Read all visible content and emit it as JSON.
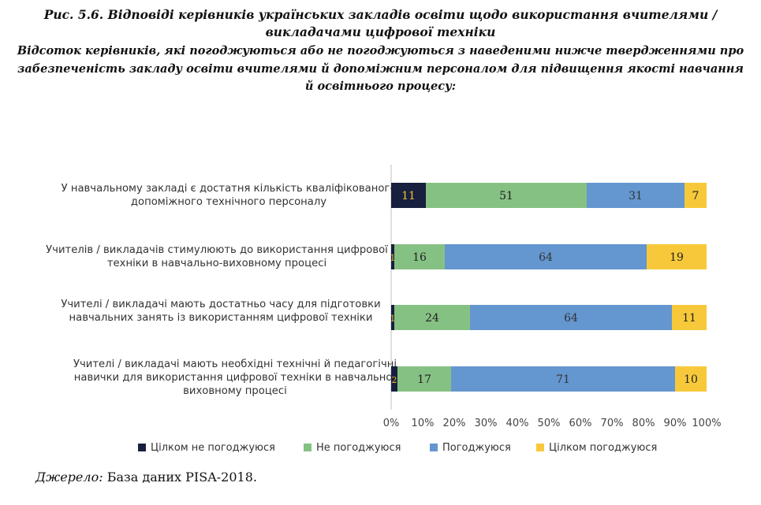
{
  "figure": {
    "title": "Рис. 5.6. Відповіді керівників українських закладів освіти щодо використання вчителями / викладачами цифрової техніки",
    "subtitle": "Відсоток керівників, які погоджуються або не погоджуються з наведеними нижче твердженнями про забезпеченість закладу освіти вчителями й допоміжним персоналом для підвищення якості навчання й освітнього процесу:",
    "source_label": "Джерело:",
    "source_text": "База даних PISA-2018."
  },
  "chart_data": {
    "type": "bar",
    "orientation": "horizontal",
    "stacked": "percent",
    "categories": [
      "У навчальному закладі є достатня кількість кваліфікованого допоміжного технічного персоналу",
      "Учителів / викладачів стимулюють до використання цифрової техніки в навчально-виховному процесі",
      "Учителі / викладачі мають достатньо часу для підготовки навчальних занять із використанням цифрової техніки",
      "Учителі / викладачі мають необхідні технічні й педагогічні навички для використання цифрової техніки в навчально-виховному процесі"
    ],
    "series": [
      {
        "name": "Цілком не погоджуюся",
        "color": "#17203f",
        "label_color": "#f2c12e",
        "values": [
          11,
          1,
          1,
          2
        ]
      },
      {
        "name": "Не погоджуюся",
        "color": "#86c184",
        "label_color": "#222222",
        "values": [
          51,
          16,
          24,
          17
        ]
      },
      {
        "name": "Погоджуюся",
        "color": "#6496cf",
        "label_color": "#333333",
        "values": [
          31,
          64,
          64,
          71
        ]
      },
      {
        "name": "Цілком погоджуюся",
        "color": "#f7c93a",
        "label_color": "#222222",
        "values": [
          7,
          19,
          11,
          10
        ]
      }
    ],
    "xlim": [
      0,
      100
    ],
    "x_ticks": [
      "0%",
      "10%",
      "20%",
      "30%",
      "40%",
      "50%",
      "60%",
      "70%",
      "80%",
      "90%",
      "100%"
    ],
    "legend_position": "bottom",
    "grid": false
  }
}
